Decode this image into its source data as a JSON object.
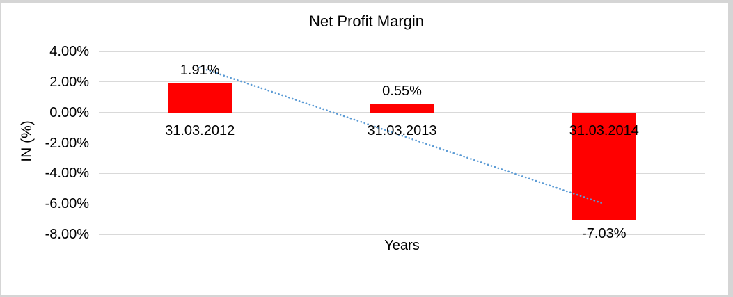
{
  "chart_data": {
    "type": "bar",
    "title": "Net Profit Margin",
    "xlabel": "Years",
    "ylabel": "IN (%)",
    "categories": [
      "31.03.2012",
      "31.03.2013",
      "31.03.2014"
    ],
    "values": [
      1.91,
      0.55,
      -7.03
    ],
    "data_labels": [
      "1.91%",
      "0.55%",
      "-7.03%"
    ],
    "ylim": [
      -8,
      4
    ],
    "ytick_values": [
      4,
      2,
      0,
      -2,
      -4,
      -6,
      -8
    ],
    "ytick_labels": [
      "4.00%",
      "2.00%",
      "0.00%",
      "-2.00%",
      "-4.00%",
      "-6.00%",
      "-8.00%"
    ],
    "grid": true,
    "legend": false,
    "bar_color": "#FF0000",
    "trendline": {
      "type": "linear",
      "style": "dotted",
      "color": "#5B9BD5",
      "start_value": 2.95,
      "end_value": -6.0
    }
  },
  "colors": {
    "background": "#FFFFFF",
    "gridline": "#D9D9D9",
    "frame": "#D5D5D5",
    "text": "#000000"
  }
}
